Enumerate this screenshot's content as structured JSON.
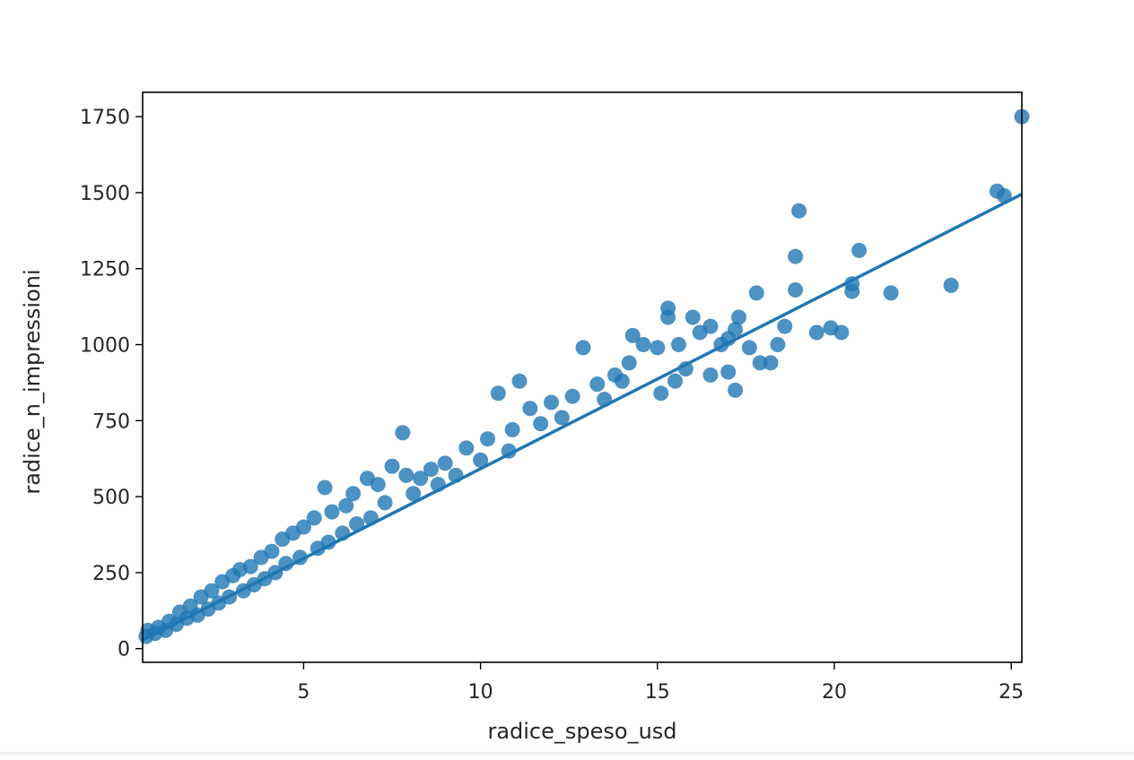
{
  "chart_data": {
    "type": "scatter",
    "title": "",
    "xlabel": "radice_speso_usd",
    "ylabel": "radice_n_impressioni",
    "xlim": [
      0.45,
      25.3
    ],
    "ylim": [
      -45,
      1830
    ],
    "x_ticks": [
      5,
      10,
      15,
      20,
      25
    ],
    "y_ticks": [
      0,
      250,
      500,
      750,
      1000,
      1250,
      1500,
      1750
    ],
    "x_tick_labels": [
      "5",
      "10",
      "15",
      "20",
      "25"
    ],
    "y_tick_labels": [
      "0",
      "250",
      "500",
      "750",
      "1000",
      "1250",
      "1500",
      "1750"
    ],
    "grid": false,
    "legend": "none",
    "point_color": "#1f77b4",
    "point_alpha": 0.8,
    "regression_line": {
      "x": [
        0.45,
        25.3
      ],
      "y": [
        28,
        1495
      ],
      "color": "#1f77b4"
    },
    "series": [
      {
        "points": [
          [
            25.3,
            1750
          ],
          [
            24.6,
            1505
          ],
          [
            24.8,
            1490
          ],
          [
            23.3,
            1195
          ],
          [
            21.6,
            1170
          ],
          [
            20.7,
            1310
          ],
          [
            20.5,
            1200
          ],
          [
            20.5,
            1175
          ],
          [
            20.2,
            1040
          ],
          [
            19.9,
            1055
          ],
          [
            19.5,
            1040
          ],
          [
            19.0,
            1440
          ],
          [
            18.9,
            1290
          ],
          [
            18.9,
            1180
          ],
          [
            18.6,
            1060
          ],
          [
            18.4,
            1000
          ],
          [
            18.2,
            940
          ],
          [
            17.9,
            940
          ],
          [
            17.8,
            1170
          ],
          [
            17.6,
            990
          ],
          [
            17.3,
            1090
          ],
          [
            17.2,
            1050
          ],
          [
            17.0,
            1020
          ],
          [
            16.8,
            1000
          ],
          [
            16.5,
            1060
          ],
          [
            16.2,
            1040
          ],
          [
            16.0,
            1090
          ],
          [
            15.6,
            1000
          ],
          [
            15.3,
            1120
          ],
          [
            15.3,
            1090
          ],
          [
            15.0,
            990
          ],
          [
            14.6,
            1000
          ],
          [
            14.3,
            1030
          ],
          [
            15.8,
            920
          ],
          [
            15.5,
            880
          ],
          [
            16.5,
            900
          ],
          [
            17.2,
            850
          ],
          [
            17.0,
            910
          ],
          [
            15.1,
            840
          ],
          [
            14.2,
            940
          ],
          [
            13.8,
            900
          ],
          [
            13.3,
            870
          ],
          [
            12.9,
            990
          ],
          [
            12.6,
            830
          ],
          [
            12.0,
            810
          ],
          [
            11.4,
            790
          ],
          [
            11.1,
            880
          ],
          [
            10.9,
            720
          ],
          [
            10.5,
            840
          ],
          [
            10.2,
            690
          ],
          [
            9.6,
            660
          ],
          [
            9.0,
            610
          ],
          [
            8.6,
            590
          ],
          [
            8.3,
            560
          ],
          [
            7.9,
            570
          ],
          [
            7.8,
            710
          ],
          [
            7.5,
            600
          ],
          [
            7.1,
            540
          ],
          [
            6.8,
            560
          ],
          [
            6.4,
            510
          ],
          [
            6.2,
            470
          ],
          [
            5.8,
            450
          ],
          [
            5.6,
            530
          ],
          [
            5.3,
            430
          ],
          [
            5.0,
            400
          ],
          [
            4.7,
            380
          ],
          [
            4.4,
            360
          ],
          [
            4.1,
            320
          ],
          [
            3.8,
            300
          ],
          [
            3.5,
            270
          ],
          [
            3.2,
            260
          ],
          [
            3.0,
            240
          ],
          [
            2.7,
            220
          ],
          [
            2.4,
            190
          ],
          [
            2.1,
            170
          ],
          [
            1.8,
            140
          ],
          [
            1.5,
            120
          ],
          [
            1.2,
            90
          ],
          [
            0.9,
            70
          ],
          [
            0.6,
            60
          ],
          [
            14.0,
            880
          ],
          [
            13.5,
            820
          ],
          [
            12.3,
            760
          ],
          [
            11.7,
            740
          ],
          [
            10.8,
            650
          ],
          [
            10.0,
            620
          ],
          [
            9.3,
            570
          ],
          [
            8.8,
            540
          ],
          [
            8.1,
            510
          ],
          [
            7.3,
            480
          ],
          [
            6.9,
            430
          ],
          [
            6.5,
            410
          ],
          [
            6.1,
            380
          ],
          [
            5.7,
            350
          ],
          [
            5.4,
            330
          ],
          [
            4.9,
            300
          ],
          [
            4.5,
            280
          ],
          [
            4.2,
            250
          ],
          [
            3.9,
            230
          ],
          [
            3.6,
            210
          ],
          [
            3.3,
            190
          ],
          [
            2.9,
            170
          ],
          [
            2.6,
            150
          ],
          [
            2.3,
            130
          ],
          [
            2.0,
            110
          ],
          [
            1.7,
            100
          ],
          [
            1.4,
            80
          ],
          [
            1.1,
            60
          ],
          [
            0.8,
            50
          ],
          [
            0.55,
            40
          ]
        ]
      }
    ]
  }
}
